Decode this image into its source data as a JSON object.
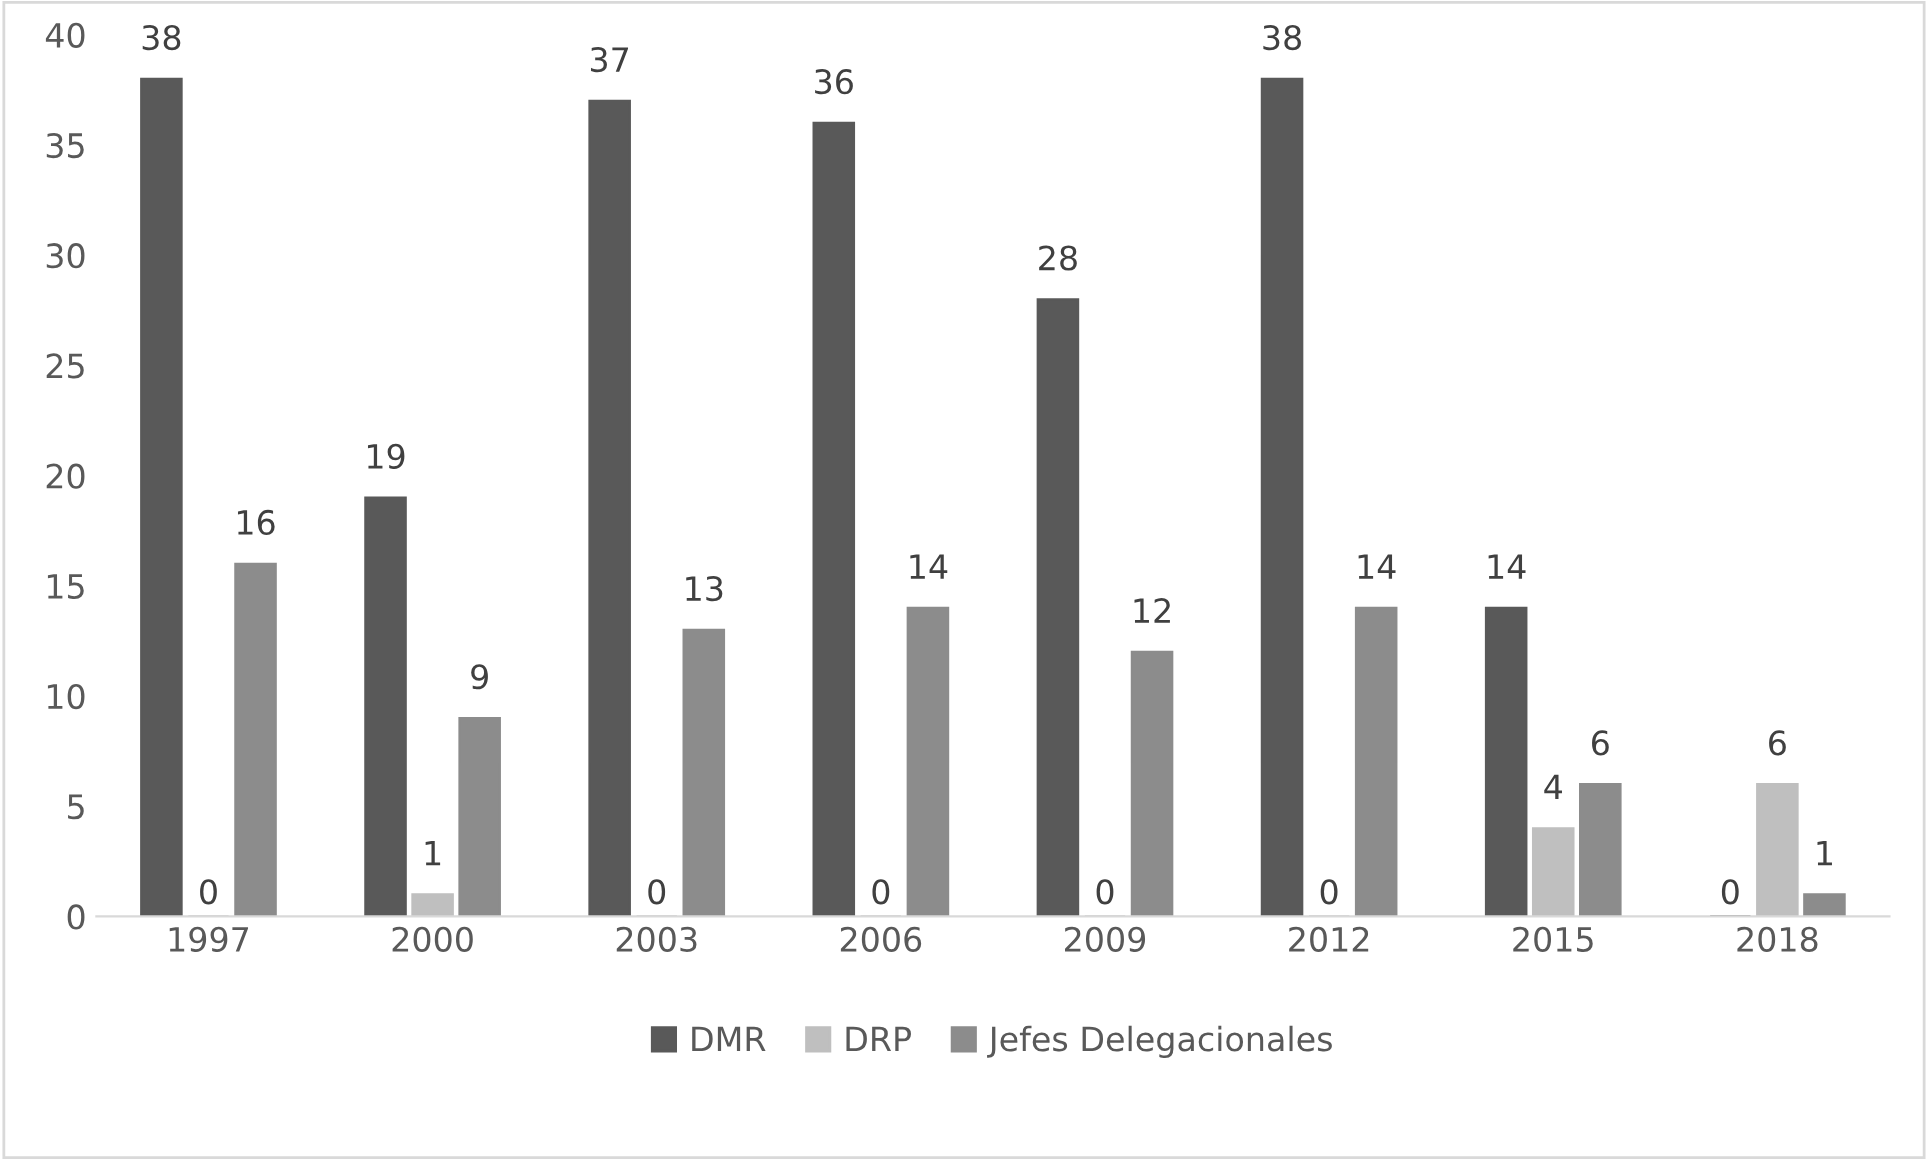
{
  "chart_data": {
    "type": "bar",
    "categories": [
      "1997",
      "2000",
      "2003",
      "2006",
      "2009",
      "2012",
      "2015",
      "2018"
    ],
    "series": [
      {
        "name": "DMR",
        "color": "#595959",
        "values": [
          38,
          19,
          37,
          36,
          28,
          38,
          14,
          0
        ]
      },
      {
        "name": "DRP",
        "color": "#bfbfbf",
        "values": [
          0,
          1,
          0,
          0,
          0,
          0,
          4,
          6
        ]
      },
      {
        "name": "Jefes Delegacionales",
        "color": "#8c8c8c",
        "values": [
          16,
          9,
          13,
          14,
          12,
          14,
          6,
          1
        ]
      }
    ],
    "ylim": [
      0,
      40
    ],
    "yticks": [
      0,
      5,
      10,
      15,
      20,
      25,
      30,
      35,
      40
    ],
    "grid": false,
    "legend": "bottom",
    "data_labels": true
  }
}
